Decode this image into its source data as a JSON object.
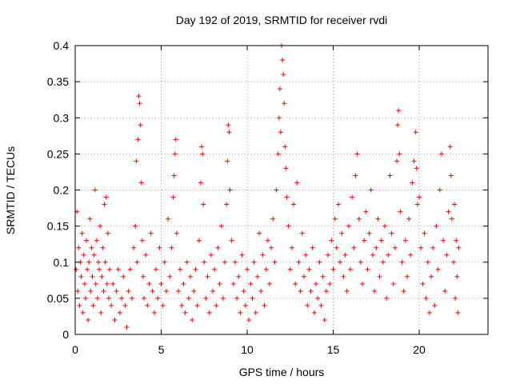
{
  "chart_data": {
    "type": "scatter",
    "title": "Day 192 of 2019, SRMTID for receiver rvdi",
    "xlabel": "GPS time / hours",
    "ylabel": "SRMTID / TECUs",
    "xlim": [
      0,
      24
    ],
    "ylim": [
      0,
      0.4
    ],
    "xticks": [
      0,
      5,
      10,
      15,
      20
    ],
    "xtick_labels": [
      "0",
      "5",
      "10",
      "15",
      "20"
    ],
    "yticks": [
      0,
      0.05,
      0.1,
      0.15,
      0.2,
      0.25,
      0.3,
      0.35,
      0.4
    ],
    "ytick_labels": [
      "0",
      "0.05",
      "0.1",
      "0.15",
      "0.2",
      "0.25",
      "0.3",
      "0.35",
      "0.4"
    ],
    "grid": true,
    "marker": "+",
    "marker_color": "#ff0000",
    "series": [
      {
        "name": "rvdi",
        "points": [
          [
            0.05,
            0.09
          ],
          [
            0.1,
            0.17
          ],
          [
            0.15,
            0.06
          ],
          [
            0.2,
            0.12
          ],
          [
            0.25,
            0.04
          ],
          [
            0.3,
            0.1
          ],
          [
            0.35,
            0.08
          ],
          [
            0.4,
            0.14
          ],
          [
            0.45,
            0.03
          ],
          [
            0.5,
            0.11
          ],
          [
            0.55,
            0.07
          ],
          [
            0.6,
            0.05
          ],
          [
            0.65,
            0.13
          ],
          [
            0.7,
            0.09
          ],
          [
            0.75,
            0.02
          ],
          [
            0.8,
            0.1
          ],
          [
            0.85,
            0.16
          ],
          [
            0.9,
            0.06
          ],
          [
            0.95,
            0.12
          ],
          [
            1.0,
            0.08
          ],
          [
            1.05,
            0.04
          ],
          [
            1.1,
            0.11
          ],
          [
            1.15,
            0.2
          ],
          [
            1.2,
            0.07
          ],
          [
            1.25,
            0.13
          ],
          [
            1.3,
            0.05
          ],
          [
            1.35,
            0.1
          ],
          [
            1.4,
            0.09
          ],
          [
            1.45,
            0.15
          ],
          [
            1.5,
            0.03
          ],
          [
            1.55,
            0.08
          ],
          [
            1.6,
            0.12
          ],
          [
            1.65,
            0.06
          ],
          [
            1.7,
            0.18
          ],
          [
            1.75,
            0.1
          ],
          [
            1.8,
            0.19
          ],
          [
            1.85,
            0.07
          ],
          [
            1.9,
            0.14
          ],
          [
            1.95,
            0.05
          ],
          [
            2.0,
            0.09
          ],
          [
            2.1,
            0.04
          ],
          [
            2.2,
            0.07
          ],
          [
            2.3,
            0.02
          ],
          [
            2.4,
            0.06
          ],
          [
            2.5,
            0.09
          ],
          [
            2.6,
            0.03
          ],
          [
            2.7,
            0.05
          ],
          [
            2.8,
            0.08
          ],
          [
            2.9,
            0.04
          ],
          [
            3.0,
            0.01
          ],
          [
            3.1,
            0.06
          ],
          [
            3.2,
            0.09
          ],
          [
            3.3,
            0.05
          ],
          [
            3.4,
            0.12
          ],
          [
            3.5,
            0.15
          ],
          [
            3.55,
            0.24
          ],
          [
            3.6,
            0.1
          ],
          [
            3.65,
            0.27
          ],
          [
            3.7,
            0.33
          ],
          [
            3.75,
            0.32
          ],
          [
            3.8,
            0.29
          ],
          [
            3.85,
            0.21
          ],
          [
            3.9,
            0.13
          ],
          [
            3.95,
            0.08
          ],
          [
            4.0,
            0.05
          ],
          [
            4.1,
            0.11
          ],
          [
            4.2,
            0.04
          ],
          [
            4.3,
            0.07
          ],
          [
            4.4,
            0.14
          ],
          [
            4.5,
            0.06
          ],
          [
            4.6,
            0.03
          ],
          [
            4.7,
            0.09
          ],
          [
            4.8,
            0.05
          ],
          [
            4.9,
            0.12
          ],
          [
            5.0,
            0.07
          ],
          [
            5.1,
            0.04
          ],
          [
            5.2,
            0.1
          ],
          [
            5.3,
            0.06
          ],
          [
            5.4,
            0.16
          ],
          [
            5.5,
            0.08
          ],
          [
            5.6,
            0.12
          ],
          [
            5.7,
            0.19
          ],
          [
            5.75,
            0.22
          ],
          [
            5.8,
            0.25
          ],
          [
            5.85,
            0.27
          ],
          [
            5.9,
            0.14
          ],
          [
            6.0,
            0.06
          ],
          [
            6.1,
            0.09
          ],
          [
            6.2,
            0.04
          ],
          [
            6.3,
            0.07
          ],
          [
            6.4,
            0.03
          ],
          [
            6.5,
            0.1
          ],
          [
            6.6,
            0.05
          ],
          [
            6.7,
            0.08
          ],
          [
            6.8,
            0.02
          ],
          [
            6.9,
            0.06
          ],
          [
            7.0,
            0.09
          ],
          [
            7.1,
            0.04
          ],
          [
            7.2,
            0.13
          ],
          [
            7.3,
            0.21
          ],
          [
            7.35,
            0.26
          ],
          [
            7.4,
            0.25
          ],
          [
            7.45,
            0.18
          ],
          [
            7.5,
            0.1
          ],
          [
            7.6,
            0.05
          ],
          [
            7.7,
            0.08
          ],
          [
            7.8,
            0.03
          ],
          [
            7.9,
            0.11
          ],
          [
            8.0,
            0.06
          ],
          [
            8.1,
            0.09
          ],
          [
            8.2,
            0.04
          ],
          [
            8.3,
            0.12
          ],
          [
            8.4,
            0.07
          ],
          [
            8.5,
            0.15
          ],
          [
            8.6,
            0.05
          ],
          [
            8.7,
            0.1
          ],
          [
            8.8,
            0.18
          ],
          [
            8.85,
            0.24
          ],
          [
            8.9,
            0.29
          ],
          [
            8.95,
            0.28
          ],
          [
            9.0,
            0.2
          ],
          [
            9.1,
            0.13
          ],
          [
            9.2,
            0.07
          ],
          [
            9.3,
            0.1
          ],
          [
            9.4,
            0.05
          ],
          [
            9.5,
            0.08
          ],
          [
            9.6,
            0.03
          ],
          [
            9.7,
            0.11
          ],
          [
            9.8,
            0.06
          ],
          [
            9.9,
            0.04
          ],
          [
            10.0,
            0.09
          ],
          [
            10.1,
            0.02
          ],
          [
            10.2,
            0.07
          ],
          [
            10.3,
            0.05
          ],
          [
            10.4,
            0.1
          ],
          [
            10.5,
            0.03
          ],
          [
            10.6,
            0.08
          ],
          [
            10.7,
            0.14
          ],
          [
            10.8,
            0.06
          ],
          [
            10.9,
            0.11
          ],
          [
            11.0,
            0.04
          ],
          [
            11.1,
            0.09
          ],
          [
            11.2,
            0.13
          ],
          [
            11.3,
            0.07
          ],
          [
            11.4,
            0.12
          ],
          [
            11.5,
            0.16
          ],
          [
            11.6,
            0.1
          ],
          [
            11.7,
            0.2
          ],
          [
            11.8,
            0.25
          ],
          [
            11.85,
            0.3
          ],
          [
            11.9,
            0.34
          ],
          [
            11.95,
            0.28
          ],
          [
            12.0,
            0.4
          ],
          [
            12.05,
            0.38
          ],
          [
            12.1,
            0.36
          ],
          [
            12.15,
            0.32
          ],
          [
            12.2,
            0.26
          ],
          [
            12.25,
            0.23
          ],
          [
            12.3,
            0.19
          ],
          [
            12.4,
            0.15
          ],
          [
            12.5,
            0.09
          ],
          [
            12.6,
            0.12
          ],
          [
            12.7,
            0.18
          ],
          [
            12.8,
            0.07
          ],
          [
            12.9,
            0.21
          ],
          [
            13.0,
            0.1
          ],
          [
            13.1,
            0.06
          ],
          [
            13.2,
            0.14
          ],
          [
            13.3,
            0.08
          ],
          [
            13.4,
            0.11
          ],
          [
            13.5,
            0.04
          ],
          [
            13.6,
            0.09
          ],
          [
            13.7,
            0.06
          ],
          [
            13.8,
            0.12
          ],
          [
            13.9,
            0.03
          ],
          [
            14.0,
            0.07
          ],
          [
            14.1,
            0.05
          ],
          [
            14.2,
            0.1
          ],
          [
            14.3,
            0.04
          ],
          [
            14.4,
            0.08
          ],
          [
            14.5,
            0.02
          ],
          [
            14.6,
            0.06
          ],
          [
            14.7,
            0.11
          ],
          [
            14.8,
            0.07
          ],
          [
            14.9,
            0.13
          ],
          [
            15.0,
            0.09
          ],
          [
            15.1,
            0.16
          ],
          [
            15.2,
            0.12
          ],
          [
            15.3,
            0.18
          ],
          [
            15.4,
            0.1
          ],
          [
            15.5,
            0.14
          ],
          [
            15.6,
            0.08
          ],
          [
            15.7,
            0.11
          ],
          [
            15.8,
            0.06
          ],
          [
            15.9,
            0.15
          ],
          [
            16.0,
            0.09
          ],
          [
            16.1,
            0.19
          ],
          [
            16.2,
            0.12
          ],
          [
            16.3,
            0.22
          ],
          [
            16.4,
            0.25
          ],
          [
            16.5,
            0.16
          ],
          [
            16.6,
            0.1
          ],
          [
            16.7,
            0.07
          ],
          [
            16.8,
            0.13
          ],
          [
            16.9,
            0.17
          ],
          [
            17.0,
            0.09
          ],
          [
            17.1,
            0.14
          ],
          [
            17.2,
            0.2
          ],
          [
            17.3,
            0.11
          ],
          [
            17.4,
            0.06
          ],
          [
            17.5,
            0.12
          ],
          [
            17.6,
            0.16
          ],
          [
            17.7,
            0.08
          ],
          [
            17.8,
            0.13
          ],
          [
            17.9,
            0.1
          ],
          [
            18.0,
            0.15
          ],
          [
            18.1,
            0.05
          ],
          [
            18.2,
            0.11
          ],
          [
            18.3,
            0.22
          ],
          [
            18.4,
            0.14
          ],
          [
            18.5,
            0.07
          ],
          [
            18.6,
            0.12
          ],
          [
            18.7,
            0.24
          ],
          [
            18.75,
            0.29
          ],
          [
            18.8,
            0.31
          ],
          [
            18.85,
            0.25
          ],
          [
            18.9,
            0.17
          ],
          [
            19.0,
            0.1
          ],
          [
            19.1,
            0.06
          ],
          [
            19.2,
            0.13
          ],
          [
            19.3,
            0.08
          ],
          [
            19.4,
            0.16
          ],
          [
            19.5,
            0.11
          ],
          [
            19.6,
            0.21
          ],
          [
            19.7,
            0.24
          ],
          [
            19.8,
            0.28
          ],
          [
            19.85,
            0.23
          ],
          [
            19.9,
            0.18
          ],
          [
            20.0,
            0.19
          ],
          [
            20.1,
            0.12
          ],
          [
            20.2,
            0.07
          ],
          [
            20.3,
            0.14
          ],
          [
            20.4,
            0.05
          ],
          [
            20.5,
            0.1
          ],
          [
            20.6,
            0.03
          ],
          [
            20.7,
            0.08
          ],
          [
            20.8,
            0.12
          ],
          [
            20.9,
            0.04
          ],
          [
            21.0,
            0.15
          ],
          [
            21.1,
            0.09
          ],
          [
            21.2,
            0.2
          ],
          [
            21.3,
            0.25
          ],
          [
            21.4,
            0.13
          ],
          [
            21.5,
            0.06
          ],
          [
            21.6,
            0.11
          ],
          [
            21.7,
            0.17
          ],
          [
            21.8,
            0.26
          ],
          [
            21.85,
            0.22
          ],
          [
            21.9,
            0.16
          ],
          [
            22.0,
            0.1
          ],
          [
            22.05,
            0.18
          ],
          [
            22.1,
            0.05
          ],
          [
            22.15,
            0.13
          ],
          [
            22.2,
            0.08
          ],
          [
            22.25,
            0.03
          ],
          [
            22.3,
            0.12
          ]
        ]
      }
    ]
  }
}
